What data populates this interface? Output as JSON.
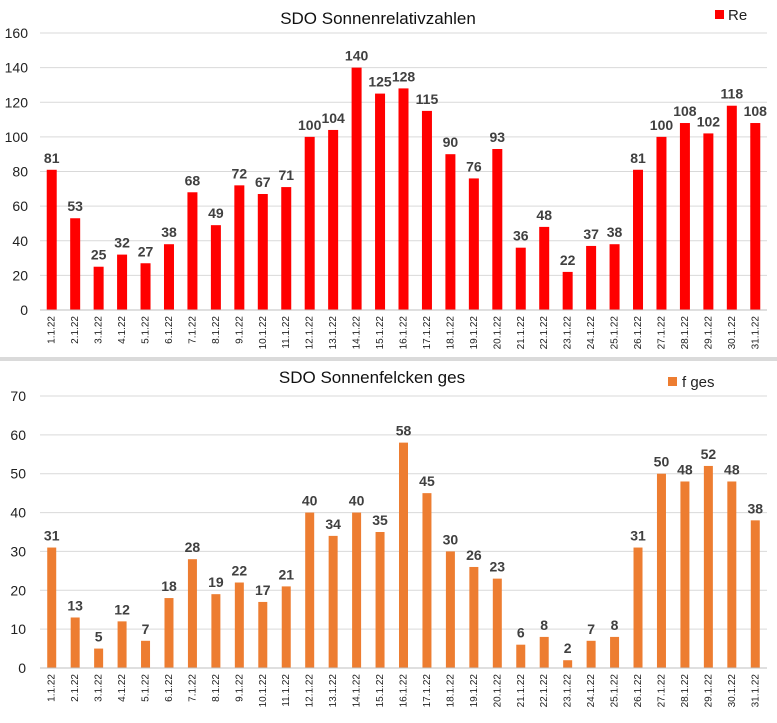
{
  "colors": {
    "grid": "#d9d9d9",
    "axis": "#bfbfbf",
    "divider": "#dadada",
    "red_series": "#ff0000",
    "orange_series": "#ed7d31"
  },
  "chart_data": [
    {
      "type": "bar",
      "title": "SDO Sonnenrelativzahlen",
      "xlabel": "",
      "ylabel": "",
      "ylim": [
        0,
        160
      ],
      "yticks": [
        "0",
        "20",
        "40",
        "60",
        "80",
        "100",
        "120",
        "140",
        "160"
      ],
      "grid": true,
      "legend_position": "top-right",
      "categories": [
        "1.1.22",
        "2.1.22",
        "3.1.22",
        "4.1.22",
        "5.1.22",
        "6.1.22",
        "7.1.22",
        "8.1.22",
        "9.1.22",
        "10.1.22",
        "11.1.22",
        "12.1.22",
        "13.1.22",
        "14.1.22",
        "15.1.22",
        "16.1.22",
        "17.1.22",
        "18.1.22",
        "19.1.22",
        "20.1.22",
        "21.1.22",
        "22.1.22",
        "23.1.22",
        "24.1.22",
        "25.1.22",
        "26.1.22",
        "27.1.22",
        "28.1.22",
        "29.1.22",
        "30.1.22",
        "31.1.22"
      ],
      "series": [
        {
          "name": "Re",
          "color": "#ff0000",
          "values": [
            81,
            53,
            25,
            32,
            27,
            38,
            68,
            49,
            72,
            67,
            71,
            100,
            104,
            140,
            125,
            128,
            115,
            90,
            76,
            93,
            36,
            48,
            22,
            37,
            38,
            81,
            100,
            108,
            102,
            118,
            108
          ]
        }
      ]
    },
    {
      "type": "bar",
      "title": "SDO Sonnenfelcken ges",
      "xlabel": "",
      "ylabel": "",
      "ylim": [
        0,
        70
      ],
      "yticks": [
        "0",
        "10",
        "20",
        "30",
        "40",
        "50",
        "60",
        "70"
      ],
      "grid": true,
      "legend_position": "top-right",
      "categories": [
        "1.1.22",
        "2.1.22",
        "3.1.22",
        "4.1.22",
        "5.1.22",
        "6.1.22",
        "7.1.22",
        "8.1.22",
        "9.1.22",
        "10.1.22",
        "11.1.22",
        "12.1.22",
        "13.1.22",
        "14.1.22",
        "15.1.22",
        "16.1.22",
        "17.1.22",
        "18.1.22",
        "19.1.22",
        "20.1.22",
        "21.1.22",
        "22.1.22",
        "23.1.22",
        "24.1.22",
        "25.1.22",
        "26.1.22",
        "27.1.22",
        "28.1.22",
        "29.1.22",
        "30.1.22",
        "31.1.22"
      ],
      "series": [
        {
          "name": "f ges",
          "color": "#ed7d31",
          "values": [
            31,
            13,
            5,
            12,
            7,
            18,
            28,
            19,
            22,
            17,
            21,
            40,
            34,
            40,
            35,
            58,
            45,
            30,
            26,
            23,
            6,
            8,
            2,
            7,
            8,
            31,
            50,
            48,
            52,
            48,
            38
          ]
        }
      ]
    }
  ]
}
